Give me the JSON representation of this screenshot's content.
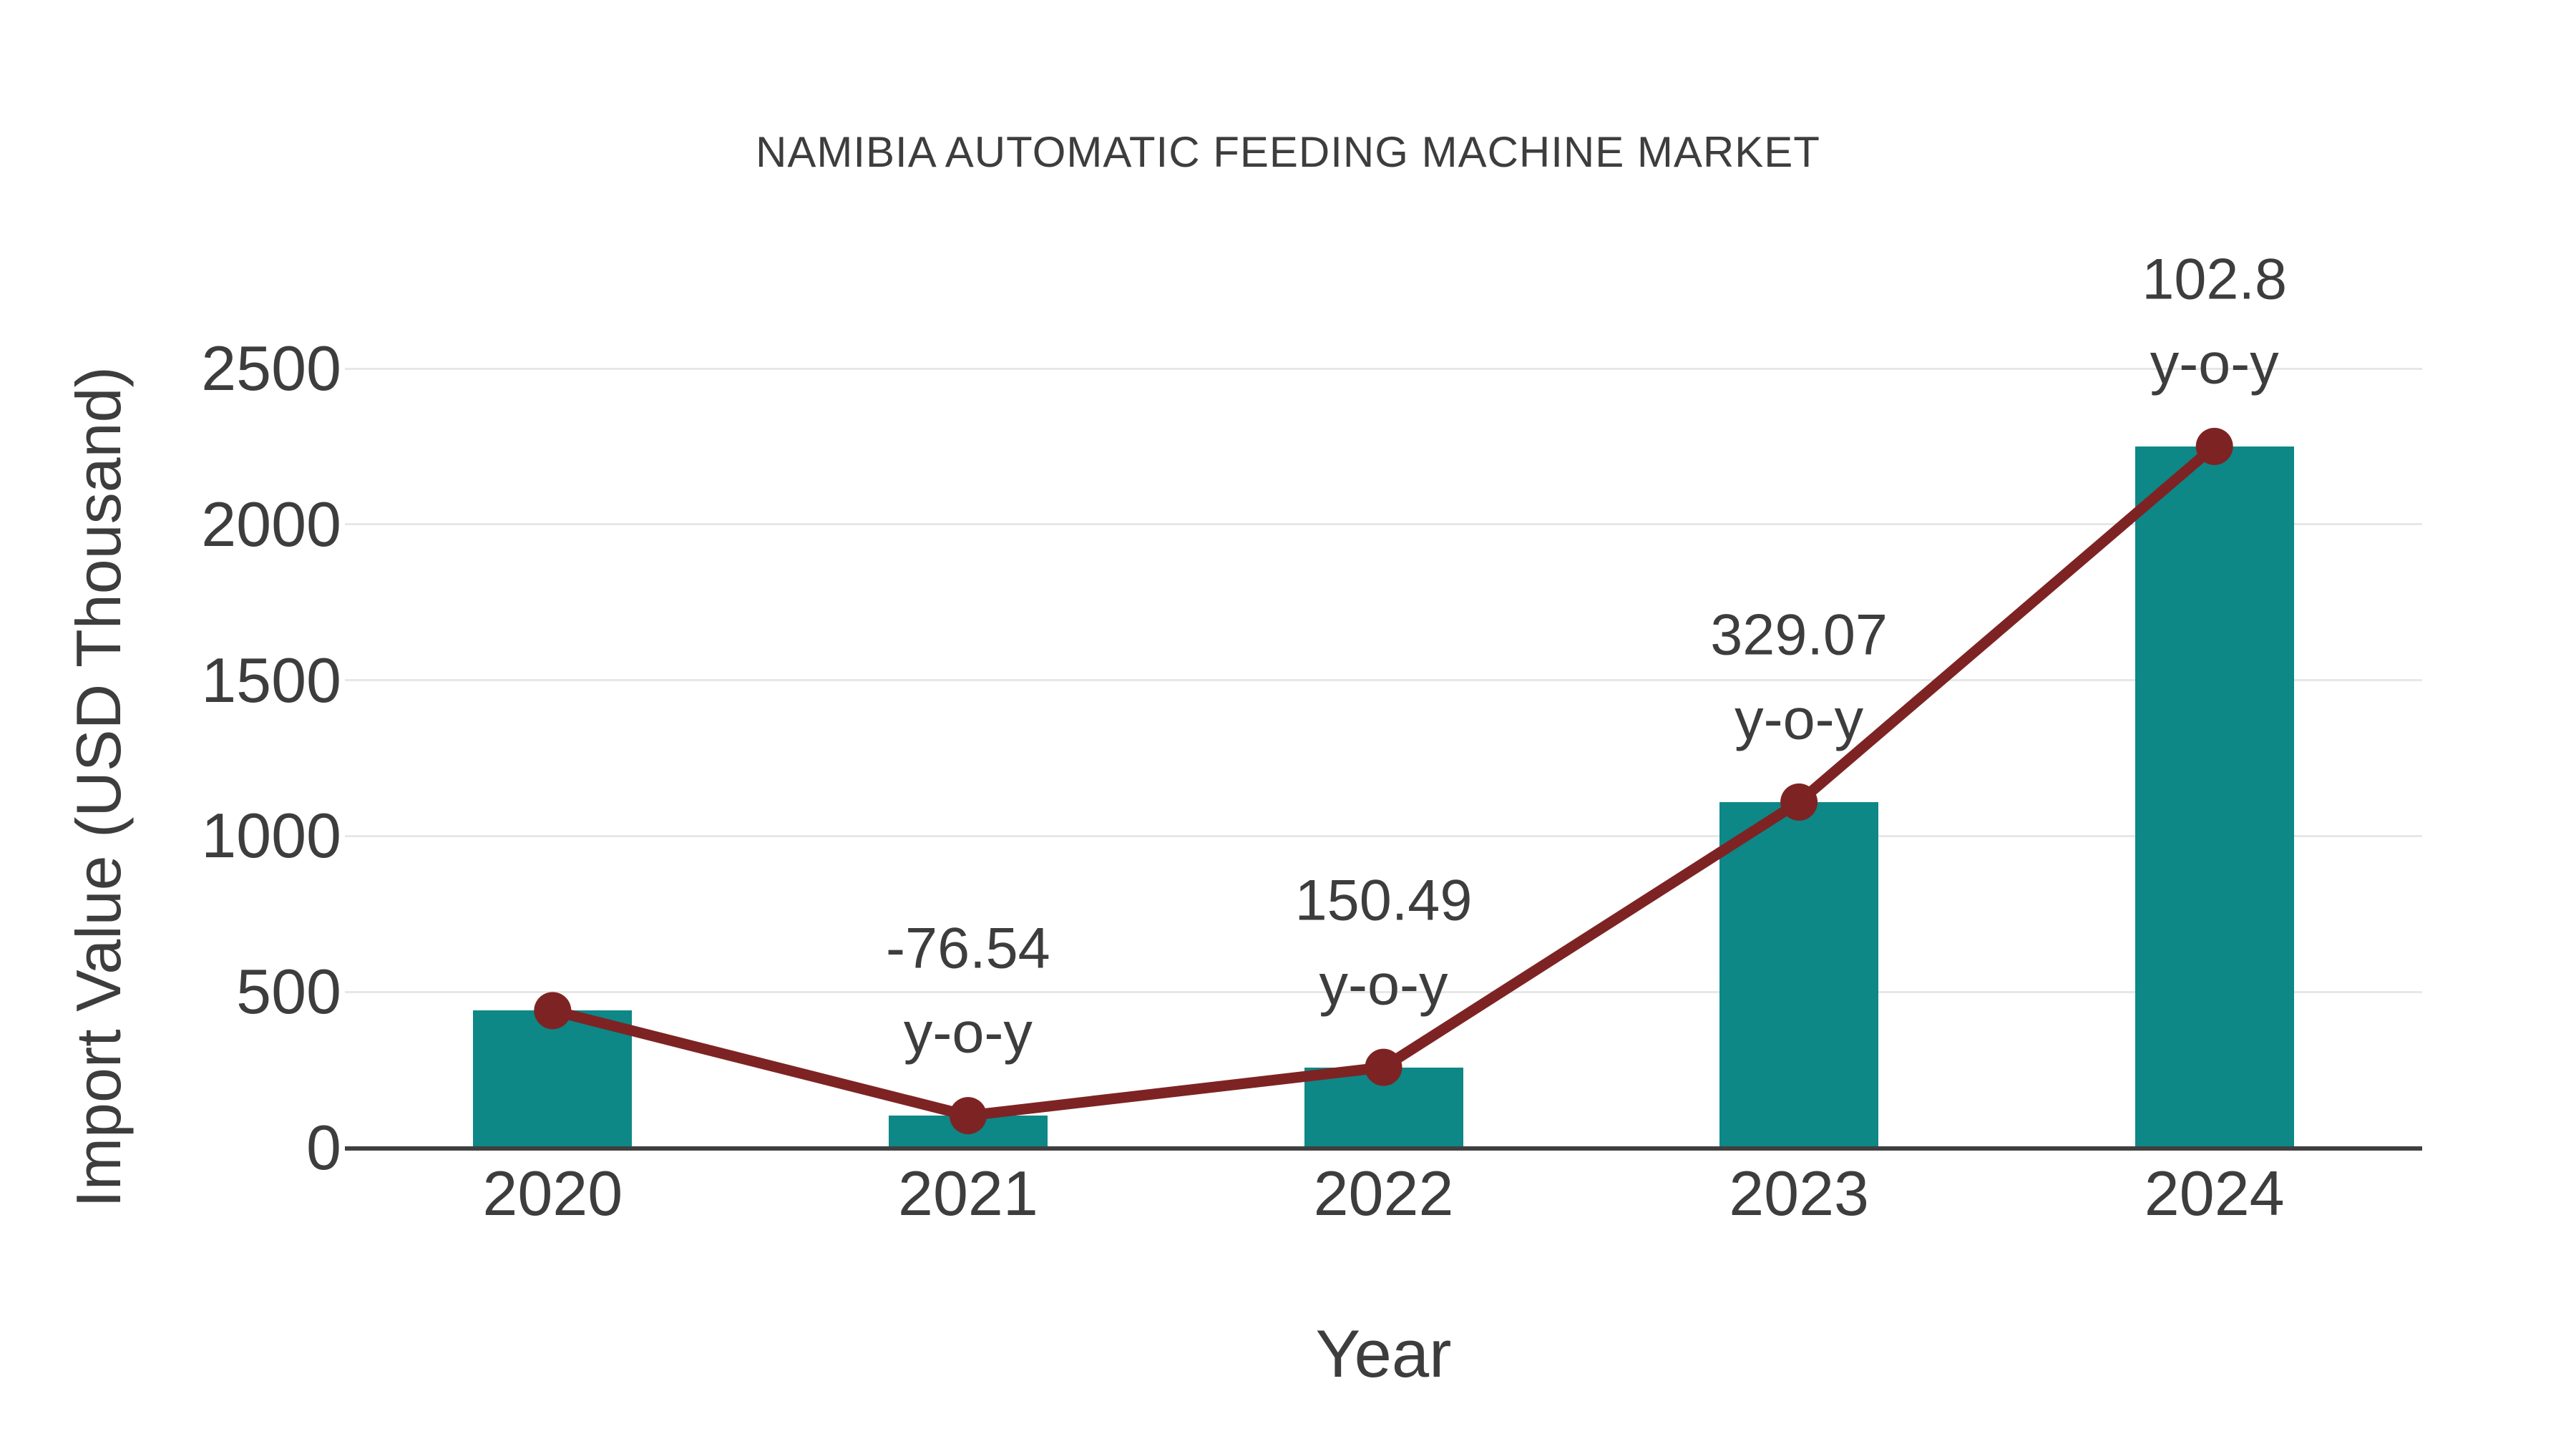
{
  "chart_data": {
    "type": "bar",
    "title": "NAMIBIA AUTOMATIC FEEDING MACHINE MARKET",
    "xlabel": "Year",
    "ylabel": "Import Value (USD Thousand)",
    "categories": [
      "2020",
      "2021",
      "2022",
      "2023",
      "2024"
    ],
    "series": [
      {
        "name": "Import Value (USD Thousand)",
        "type": "bar",
        "values": [
          440,
          103,
          258,
          1109,
          2250
        ]
      },
      {
        "name": "Import Value trend",
        "type": "line",
        "values": [
          440,
          103,
          258,
          1109,
          2250
        ]
      }
    ],
    "annotations": [
      {
        "category": "2021",
        "value_label": "-76.54",
        "suffix": "y-o-y"
      },
      {
        "category": "2022",
        "value_label": "150.49",
        "suffix": "y-o-y"
      },
      {
        "category": "2023",
        "value_label": "329.07",
        "suffix": "y-o-y"
      },
      {
        "category": "2024",
        "value_label": "102.8",
        "suffix": "y-o-y"
      }
    ],
    "yticks": [
      0,
      500,
      1000,
      1500,
      2000,
      2500
    ],
    "ylim": [
      0,
      2700
    ],
    "grid": true,
    "legend_position": "none",
    "colors": {
      "bar": "#0e8787",
      "line": "#7e2323",
      "marker": "#7e2323",
      "text": "#3d3d3d",
      "grid": "#e7e7e7",
      "axis": "#3f3f3f",
      "background": "#ffffff"
    }
  }
}
